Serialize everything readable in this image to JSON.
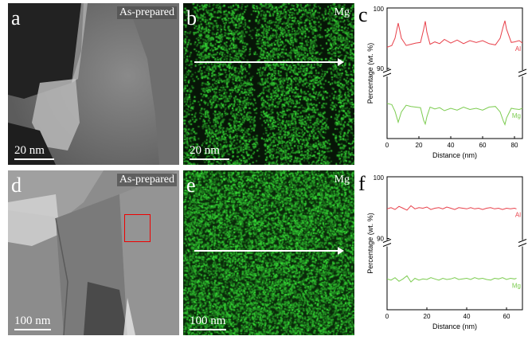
{
  "panels": {
    "a": {
      "letter": "a",
      "tag": "As-prepared",
      "scale": "20 nm"
    },
    "b": {
      "letter": "b",
      "tag": "Mg",
      "scale": "20 nm"
    },
    "c": {
      "letter": "c"
    },
    "d": {
      "letter": "d",
      "tag": "As-prepared",
      "scale": "100 nm"
    },
    "e": {
      "letter": "e",
      "tag": "Mg",
      "scale": "100 nm"
    },
    "f": {
      "letter": "f"
    }
  },
  "colors": {
    "al": "#e8404a",
    "mg": "#7ccc50",
    "map_green": "#2fa02f"
  },
  "chart_data": [
    {
      "type": "line",
      "panel": "c",
      "xlabel": "Distance (nm)",
      "ylabel": "Percentage (wt. %)",
      "xlim": [
        0,
        85
      ],
      "xticks": [
        0,
        20,
        40,
        60,
        80
      ],
      "yticks": [
        90,
        100
      ],
      "axis_break": true,
      "series": [
        {
          "name": "Al",
          "upper": true,
          "x": [
            0,
            3,
            5,
            7,
            9,
            12,
            15,
            18,
            21,
            23,
            24,
            25,
            27,
            30,
            33,
            36,
            40,
            44,
            48,
            52,
            56,
            60,
            64,
            68,
            71,
            73,
            74,
            75,
            78,
            80,
            83,
            85
          ],
          "y": [
            93.5,
            93.8,
            95,
            97.5,
            95,
            93.8,
            94,
            94.2,
            94.3,
            96.5,
            97.8,
            96,
            94,
            94.4,
            94.1,
            94.8,
            94.2,
            94.7,
            94.1,
            94.6,
            94.3,
            94.6,
            94.1,
            93.9,
            95,
            97,
            97.9,
            96.5,
            94.3,
            94.4,
            94.6,
            94.2
          ]
        },
        {
          "name": "Mg",
          "upper": false,
          "x": [
            0,
            3,
            5,
            7,
            9,
            12,
            15,
            18,
            21,
            23,
            24,
            25,
            27,
            30,
            33,
            36,
            40,
            44,
            48,
            52,
            56,
            60,
            64,
            68,
            71,
            73,
            74,
            75,
            78,
            80,
            83,
            85
          ],
          "y": [
            5.8,
            5.6,
            4.5,
            2.7,
            4.4,
            5.5,
            5.3,
            5.2,
            5.1,
            3.0,
            2.4,
            3.6,
            5.2,
            4.9,
            5.1,
            4.6,
            5.0,
            4.7,
            5.2,
            4.8,
            5.0,
            4.7,
            5.2,
            5.3,
            4.4,
            2.9,
            2.3,
            3.4,
            5.0,
            4.9,
            4.8,
            5.0
          ]
        }
      ]
    },
    {
      "type": "line",
      "panel": "f",
      "xlabel": "Distance (nm)",
      "ylabel": "Percentage (wt. %)",
      "xlim": [
        0,
        68
      ],
      "xticks": [
        0,
        20,
        40,
        60
      ],
      "yticks": [
        90,
        100
      ],
      "axis_break": true,
      "series": [
        {
          "name": "Al",
          "upper": true,
          "x": [
            0,
            2,
            4,
            6,
            8,
            10,
            12,
            14,
            16,
            18,
            20,
            22,
            24,
            26,
            28,
            30,
            32,
            34,
            36,
            38,
            40,
            42,
            44,
            46,
            48,
            50,
            52,
            54,
            56,
            58,
            60,
            62,
            64,
            65
          ],
          "y": [
            94.8,
            95.0,
            94.7,
            95.2,
            94.9,
            94.6,
            95.3,
            94.8,
            95.0,
            94.9,
            95.1,
            94.7,
            94.9,
            95.0,
            94.8,
            95.1,
            94.9,
            94.7,
            95.0,
            94.9,
            94.8,
            95.0,
            94.8,
            94.9,
            94.7,
            94.9,
            95.0,
            94.8,
            94.9,
            94.7,
            94.9,
            94.8,
            94.9,
            94.8
          ]
        },
        {
          "name": "Mg",
          "upper": false,
          "x": [
            0,
            2,
            4,
            6,
            8,
            10,
            12,
            14,
            16,
            18,
            20,
            22,
            24,
            26,
            28,
            30,
            32,
            34,
            36,
            38,
            40,
            42,
            44,
            46,
            48,
            50,
            52,
            54,
            56,
            58,
            60,
            62,
            64,
            65
          ],
          "y": [
            5.0,
            4.8,
            5.2,
            4.6,
            5.0,
            5.5,
            4.5,
            5.1,
            4.8,
            5.0,
            4.9,
            5.2,
            5.0,
            4.8,
            5.1,
            4.9,
            5.0,
            5.2,
            4.9,
            5.0,
            5.1,
            4.9,
            5.2,
            5.0,
            5.1,
            4.9,
            4.8,
            5.1,
            5.0,
            5.2,
            4.9,
            5.1,
            5.0,
            5.1
          ]
        }
      ]
    }
  ]
}
